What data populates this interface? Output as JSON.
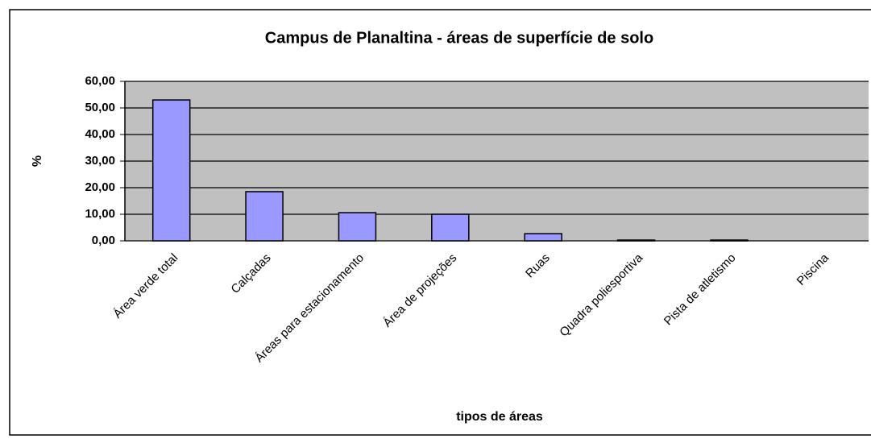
{
  "chart_data": {
    "type": "bar",
    "title": "Campus de Planaltina - áreas de superfície de solo",
    "x_label": "tipos de áreas",
    "y_label": "%",
    "categories": [
      "Área verde total",
      "Calçadas",
      "Áreas para estacionamento",
      "Área de projeções",
      "Ruas",
      "Quadra poliesportiva",
      "Pista de atletismo",
      "Piscina"
    ],
    "values": [
      53,
      18.5,
      10.6,
      10,
      2.7,
      0.3,
      0.3,
      0
    ],
    "color": "#9999ff",
    "ylim": [
      0,
      60
    ],
    "yticks": [
      {
        "value": 0,
        "label": "0,00"
      },
      {
        "value": 10,
        "label": "10,00"
      },
      {
        "value": 20,
        "label": "20,00"
      },
      {
        "value": 30,
        "label": "30,00"
      },
      {
        "value": 40,
        "label": "40,00"
      },
      {
        "value": 50,
        "label": "50,00"
      },
      {
        "value": 60,
        "label": "60,00"
      }
    ],
    "grid": true
  }
}
